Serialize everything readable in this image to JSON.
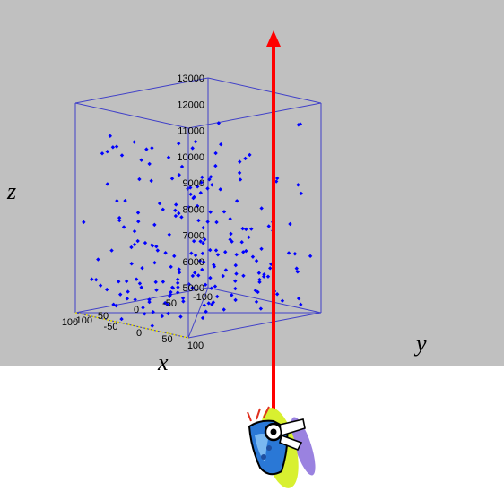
{
  "chart_data": {
    "type": "scatter",
    "projection": "3d",
    "title": "",
    "xlabel": "x",
    "ylabel": "y",
    "zlabel": "z",
    "xlim": [
      -100,
      100
    ],
    "ylim": [
      -100,
      100
    ],
    "zlim": [
      5000,
      13000
    ],
    "x_ticks": [
      "100",
      "50",
      "0",
      "-50",
      "-100"
    ],
    "y_ticks": [
      "-100",
      "-50",
      "0",
      "50",
      "100"
    ],
    "z_ticks": [
      "5000",
      "6000",
      "7000",
      "8000",
      "9000",
      "10000",
      "11000",
      "12000",
      "13000"
    ],
    "grid": false,
    "box": true,
    "marker_color": "#0000ff",
    "frame_color": "#4040c8",
    "background_color": "#c0c0c0",
    "arrow": {
      "color": "#ff0000",
      "from": "detector",
      "direction": "up (+z)"
    },
    "icon": "detector-device-icon",
    "points_count": 220
  }
}
